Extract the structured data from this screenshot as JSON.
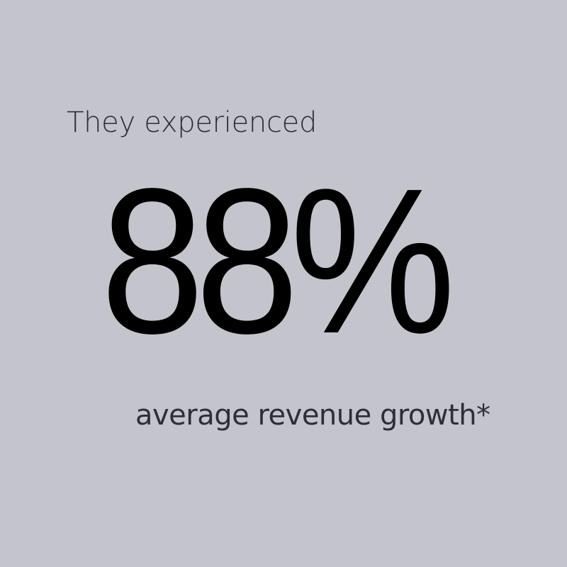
{
  "background_color": "#c4c4cd",
  "text_color": "#2e2e38",
  "intro": "They experienced",
  "stat": "88%",
  "caption": "average revenue growth*"
}
